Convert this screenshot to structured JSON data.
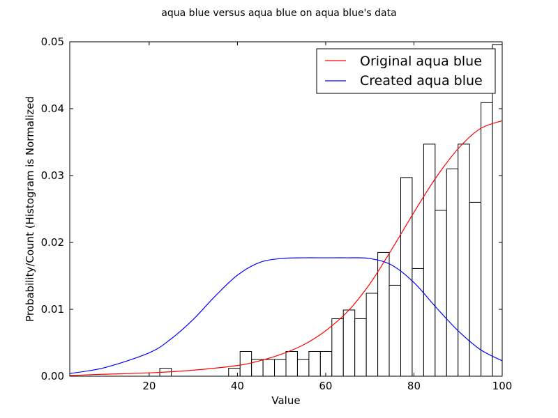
{
  "chart_data": {
    "type": "bar",
    "title": "aqua blue versus aqua blue on aqua blue's data",
    "xlabel": "Value",
    "ylabel": "Probability/Count (Histogram is Normalized",
    "xlim": [
      2,
      100
    ],
    "ylim": [
      0,
      0.05
    ],
    "xticks": [
      20,
      40,
      60,
      80,
      100
    ],
    "yticks": [
      0.0,
      0.01,
      0.02,
      0.03,
      0.04,
      0.05
    ],
    "ytick_labels": [
      "0.00",
      "0.01",
      "0.02",
      "0.03",
      "0.04",
      "0.05"
    ],
    "grid": false,
    "legend_position": "top-right",
    "histogram": {
      "bin_width": 2.6,
      "bins": [
        {
          "x0": 22.4,
          "value": 0.0012
        },
        {
          "x0": 38.0,
          "value": 0.0012
        },
        {
          "x0": 40.6,
          "value": 0.0037
        },
        {
          "x0": 43.2,
          "value": 0.0025
        },
        {
          "x0": 45.8,
          "value": 0.0025
        },
        {
          "x0": 48.4,
          "value": 0.0025
        },
        {
          "x0": 51.0,
          "value": 0.0037
        },
        {
          "x0": 53.6,
          "value": 0.0025
        },
        {
          "x0": 56.2,
          "value": 0.0037
        },
        {
          "x0": 58.8,
          "value": 0.0037
        },
        {
          "x0": 61.4,
          "value": 0.0086
        },
        {
          "x0": 64.0,
          "value": 0.0099
        },
        {
          "x0": 66.6,
          "value": 0.0086
        },
        {
          "x0": 69.2,
          "value": 0.0124
        },
        {
          "x0": 71.8,
          "value": 0.0185
        },
        {
          "x0": 74.4,
          "value": 0.0136
        },
        {
          "x0": 77.0,
          "value": 0.0297
        },
        {
          "x0": 79.6,
          "value": 0.0161
        },
        {
          "x0": 82.2,
          "value": 0.0347
        },
        {
          "x0": 84.8,
          "value": 0.0248
        },
        {
          "x0": 87.4,
          "value": 0.031
        },
        {
          "x0": 90.0,
          "value": 0.0347
        },
        {
          "x0": 92.6,
          "value": 0.026
        },
        {
          "x0": 95.2,
          "value": 0.0409
        },
        {
          "x0": 97.8,
          "value": 0.0496
        }
      ]
    },
    "series": [
      {
        "name": "Original aqua blue",
        "color": "#ff0000",
        "x": [
          2,
          10,
          20,
          30,
          40,
          45,
          50,
          55,
          60,
          65,
          70,
          75,
          80,
          85,
          90,
          95,
          100
        ],
        "y": [
          0.0001,
          0.0003,
          0.0005,
          0.0009,
          0.0016,
          0.0023,
          0.0033,
          0.0047,
          0.0068,
          0.0097,
          0.0138,
          0.019,
          0.0245,
          0.0297,
          0.034,
          0.037,
          0.0382
        ]
      },
      {
        "name": "Created aqua blue",
        "color": "#0000ff",
        "x": [
          2,
          10,
          20,
          25,
          30,
          35,
          40,
          45,
          50,
          55,
          60,
          65,
          70,
          75,
          80,
          85,
          90,
          95,
          100
        ],
        "y": [
          0.0004,
          0.0013,
          0.0035,
          0.0056,
          0.0085,
          0.012,
          0.0151,
          0.017,
          0.0176,
          0.0177,
          0.0177,
          0.0177,
          0.0176,
          0.0166,
          0.014,
          0.0103,
          0.0068,
          0.004,
          0.0023
        ]
      }
    ]
  }
}
